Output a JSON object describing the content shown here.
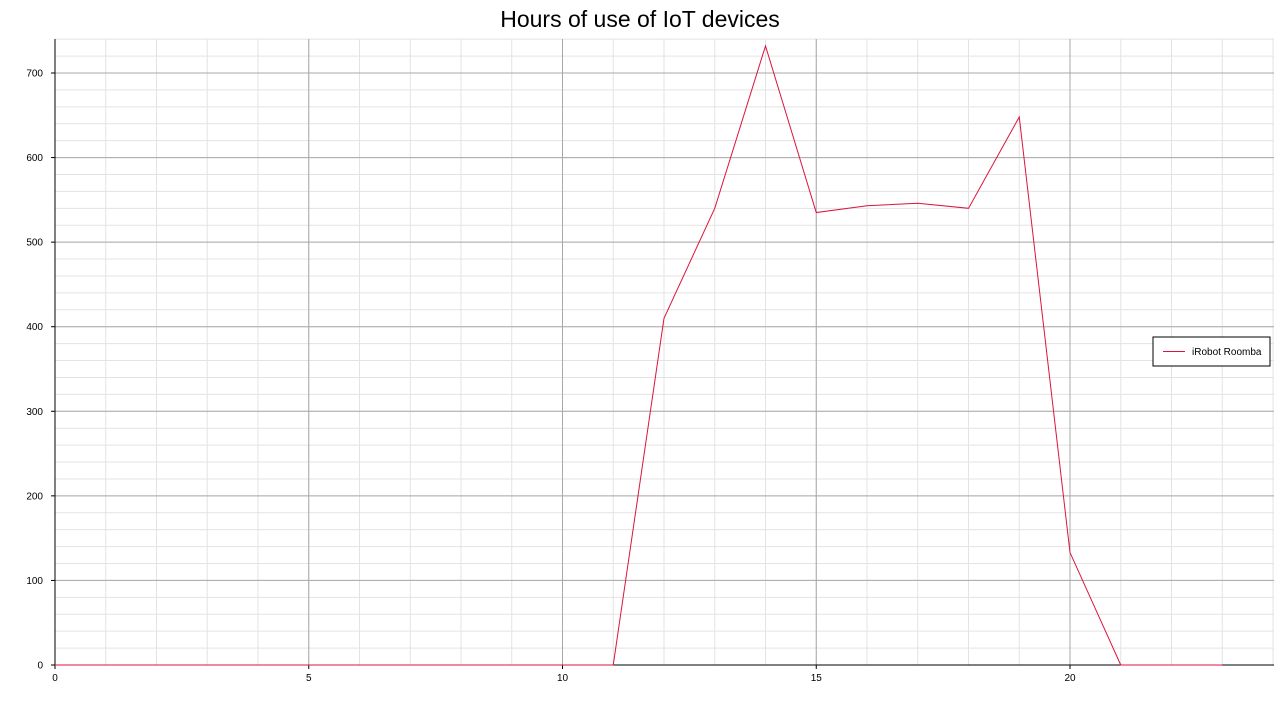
{
  "chart_data": {
    "type": "line",
    "title": "Hours of use of IoT devices",
    "xlabel": "",
    "ylabel": "",
    "xlim": [
      0,
      24
    ],
    "ylim": [
      0,
      740
    ],
    "x_ticks": [
      0,
      5,
      10,
      15,
      20
    ],
    "y_ticks": [
      0,
      100,
      200,
      300,
      400,
      500,
      600,
      700
    ],
    "grid": true,
    "legend_position": "right",
    "series": [
      {
        "name": "iRobot Roomba",
        "color": "#dc143c",
        "x": [
          0,
          1,
          2,
          3,
          4,
          5,
          6,
          7,
          8,
          9,
          10,
          11,
          12,
          13,
          14,
          15,
          16,
          17,
          18,
          19,
          20,
          21,
          22,
          23
        ],
        "y": [
          0,
          0,
          0,
          0,
          0,
          0,
          0,
          0,
          0,
          0,
          0,
          0,
          410,
          540,
          732,
          535,
          543,
          546,
          540,
          648,
          133,
          0,
          0,
          0
        ]
      }
    ]
  }
}
